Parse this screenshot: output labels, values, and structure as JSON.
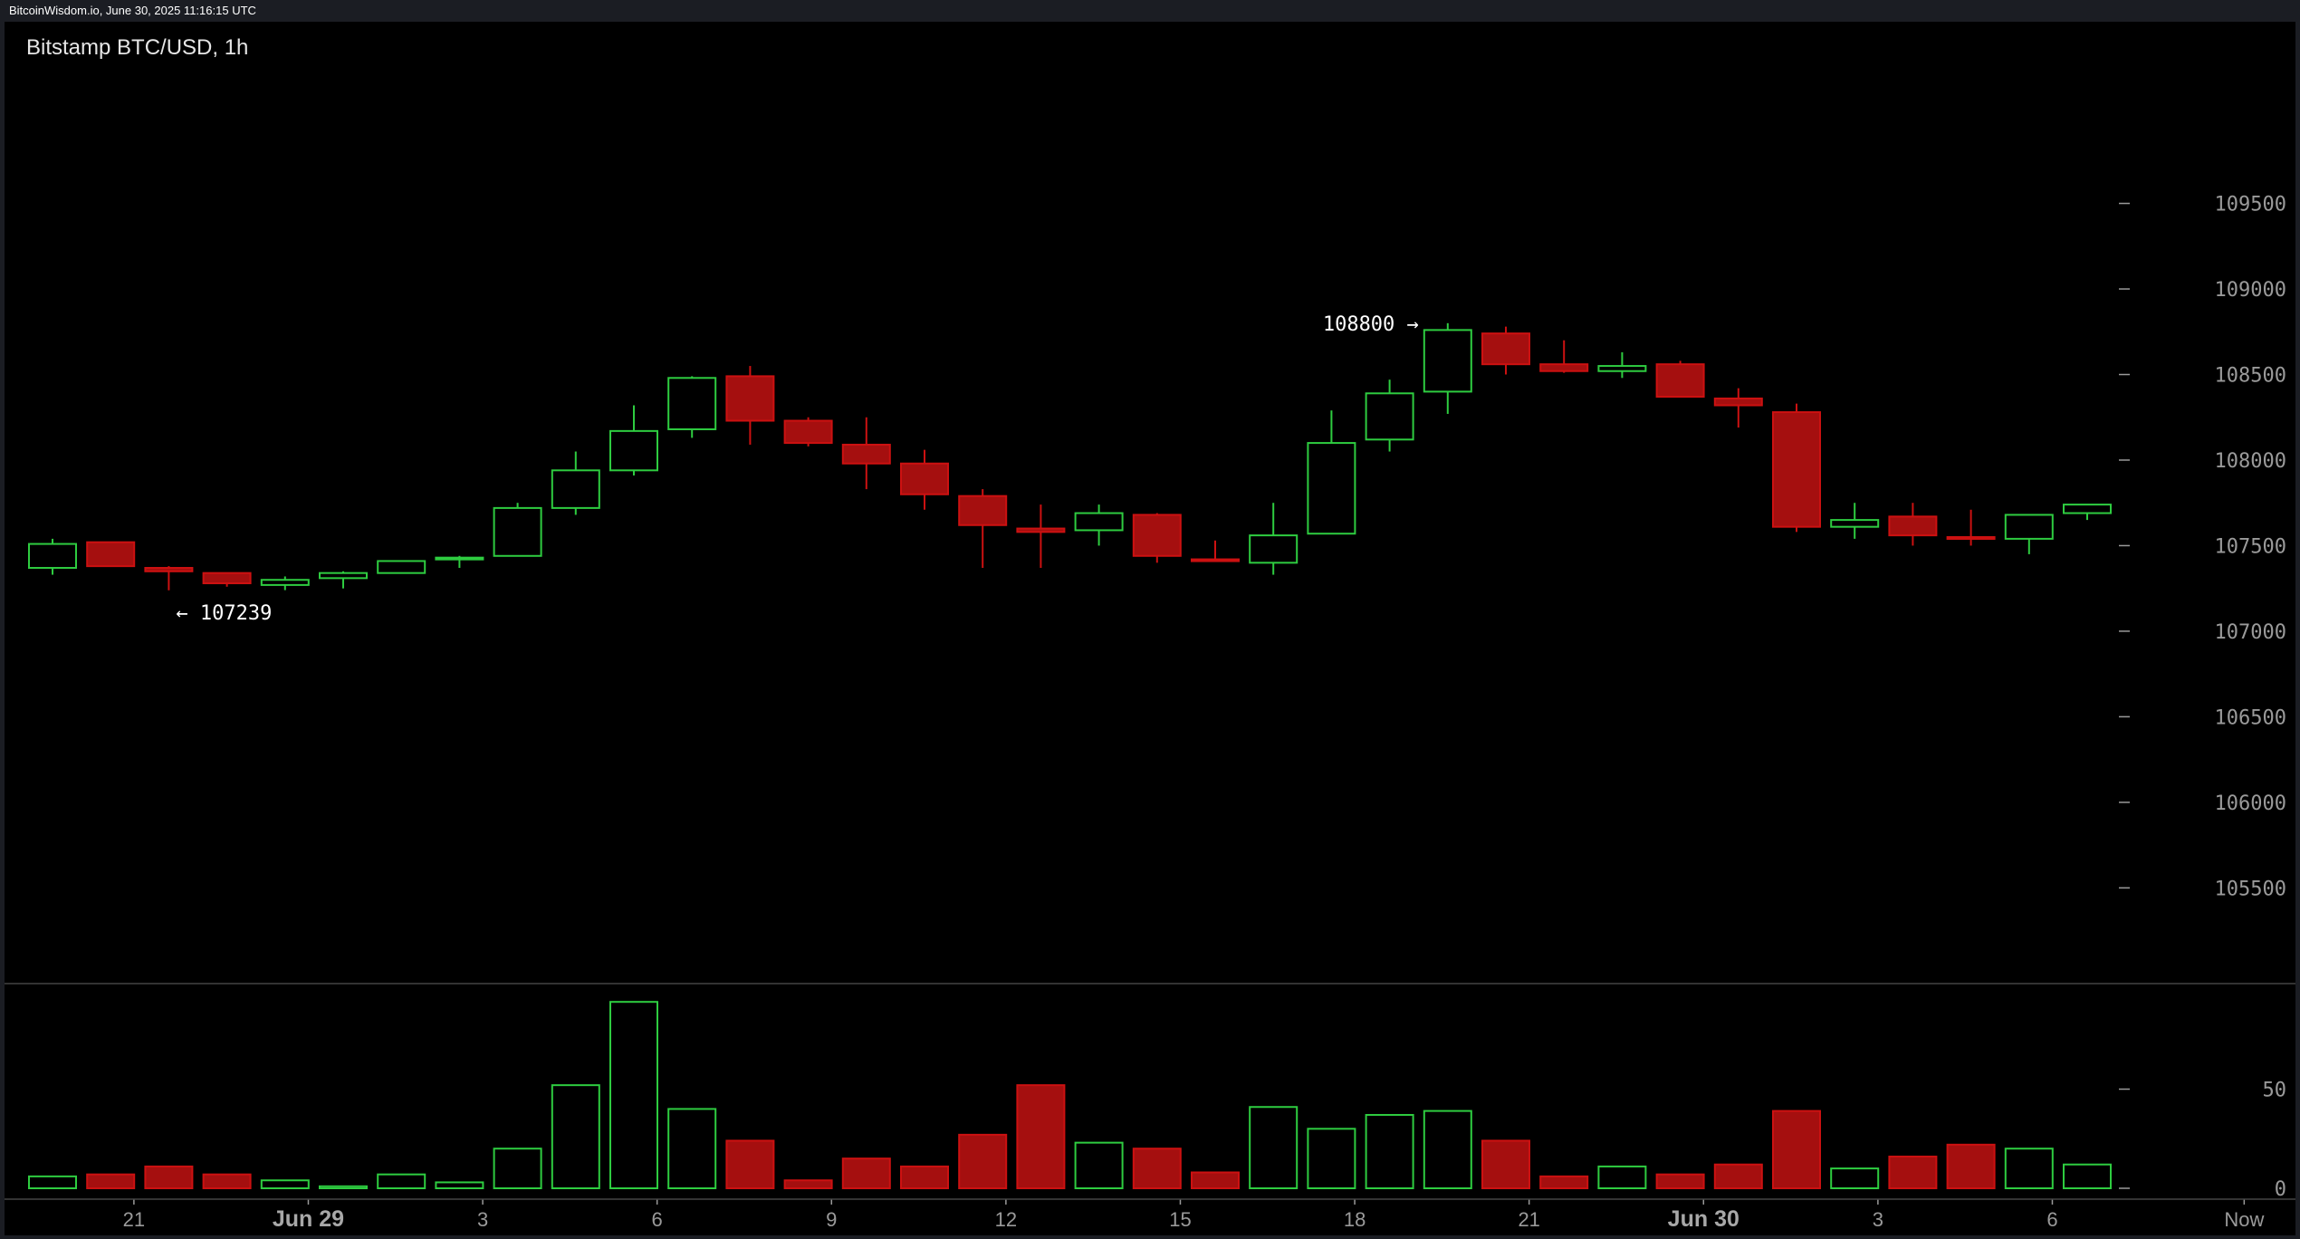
{
  "header": {
    "source_line": "BitcoinWisdom.io, June 30, 2025 11:16:15 UTC"
  },
  "chart_data": {
    "type": "candlestick",
    "title": "Bitstamp BTC/USD, 1h",
    "price_ticks": [
      109500,
      109000,
      108500,
      108000,
      107500,
      107000,
      106500,
      106000,
      105500
    ],
    "volume_ticks": [
      50,
      0
    ],
    "ylim_price": [
      105200,
      109900
    ],
    "ylim_volume": [
      0,
      95
    ],
    "x_ticks": [
      {
        "label": "21",
        "index": 1.4,
        "bold": false
      },
      {
        "label": "Jun 29",
        "index": 4.4,
        "bold": true
      },
      {
        "label": "3",
        "index": 7.4,
        "bold": false
      },
      {
        "label": "6",
        "index": 10.4,
        "bold": false
      },
      {
        "label": "9",
        "index": 13.4,
        "bold": false
      },
      {
        "label": "12",
        "index": 16.4,
        "bold": false
      },
      {
        "label": "15",
        "index": 19.4,
        "bold": false
      },
      {
        "label": "18",
        "index": 22.4,
        "bold": false
      },
      {
        "label": "21",
        "index": 25.4,
        "bold": false
      },
      {
        "label": "Jun 30",
        "index": 28.4,
        "bold": true
      },
      {
        "label": "3",
        "index": 31.4,
        "bold": false
      },
      {
        "label": "6",
        "index": 34.4,
        "bold": false
      },
      {
        "label": "Now",
        "index": 37.7,
        "bold": false
      }
    ],
    "candles": [
      {
        "o": 107370,
        "h": 107540,
        "l": 107330,
        "c": 107510,
        "v": 6
      },
      {
        "o": 107520,
        "h": 107520,
        "l": 107380,
        "c": 107380,
        "v": 7
      },
      {
        "o": 107370,
        "h": 107380,
        "l": 107239,
        "c": 107350,
        "v": 11
      },
      {
        "o": 107340,
        "h": 107340,
        "l": 107260,
        "c": 107280,
        "v": 7
      },
      {
        "o": 107270,
        "h": 107320,
        "l": 107240,
        "c": 107300,
        "v": 4
      },
      {
        "o": 107310,
        "h": 107350,
        "l": 107250,
        "c": 107340,
        "v": 1
      },
      {
        "o": 107340,
        "h": 107410,
        "l": 107340,
        "c": 107410,
        "v": 7
      },
      {
        "o": 107420,
        "h": 107440,
        "l": 107370,
        "c": 107430,
        "v": 3
      },
      {
        "o": 107440,
        "h": 107750,
        "l": 107440,
        "c": 107720,
        "v": 20
      },
      {
        "o": 107720,
        "h": 108050,
        "l": 107680,
        "c": 107940,
        "v": 52
      },
      {
        "o": 107940,
        "h": 108320,
        "l": 107910,
        "c": 108170,
        "v": 94
      },
      {
        "o": 108180,
        "h": 108490,
        "l": 108130,
        "c": 108480,
        "v": 40
      },
      {
        "o": 108490,
        "h": 108550,
        "l": 108090,
        "c": 108230,
        "v": 24
      },
      {
        "o": 108230,
        "h": 108250,
        "l": 108080,
        "c": 108100,
        "v": 4
      },
      {
        "o": 108090,
        "h": 108250,
        "l": 107830,
        "c": 107980,
        "v": 15
      },
      {
        "o": 107980,
        "h": 108060,
        "l": 107710,
        "c": 107800,
        "v": 11
      },
      {
        "o": 107790,
        "h": 107830,
        "l": 107370,
        "c": 107620,
        "v": 27
      },
      {
        "o": 107600,
        "h": 107740,
        "l": 107370,
        "c": 107580,
        "v": 52
      },
      {
        "o": 107590,
        "h": 107740,
        "l": 107500,
        "c": 107690,
        "v": 23
      },
      {
        "o": 107680,
        "h": 107690,
        "l": 107400,
        "c": 107440,
        "v": 20
      },
      {
        "o": 107420,
        "h": 107530,
        "l": 107410,
        "c": 107410,
        "v": 8
      },
      {
        "o": 107400,
        "h": 107750,
        "l": 107330,
        "c": 107560,
        "v": 41
      },
      {
        "o": 107570,
        "h": 108290,
        "l": 107570,
        "c": 108100,
        "v": 30
      },
      {
        "o": 108120,
        "h": 108470,
        "l": 108050,
        "c": 108390,
        "v": 37
      },
      {
        "o": 108400,
        "h": 108800,
        "l": 108270,
        "c": 108760,
        "v": 39
      },
      {
        "o": 108740,
        "h": 108780,
        "l": 108500,
        "c": 108560,
        "v": 24
      },
      {
        "o": 108560,
        "h": 108700,
        "l": 108510,
        "c": 108520,
        "v": 6
      },
      {
        "o": 108520,
        "h": 108630,
        "l": 108480,
        "c": 108550,
        "v": 11
      },
      {
        "o": 108560,
        "h": 108580,
        "l": 108370,
        "c": 108370,
        "v": 7
      },
      {
        "o": 108360,
        "h": 108420,
        "l": 108190,
        "c": 108320,
        "v": 12
      },
      {
        "o": 108280,
        "h": 108330,
        "l": 107580,
        "c": 107610,
        "v": 39
      },
      {
        "o": 107610,
        "h": 107750,
        "l": 107540,
        "c": 107650,
        "v": 10
      },
      {
        "o": 107670,
        "h": 107750,
        "l": 107500,
        "c": 107560,
        "v": 16
      },
      {
        "o": 107550,
        "h": 107710,
        "l": 107500,
        "c": 107540,
        "v": 22
      },
      {
        "o": 107540,
        "h": 107680,
        "l": 107450,
        "c": 107680,
        "v": 20
      },
      {
        "o": 107690,
        "h": 107740,
        "l": 107650,
        "c": 107740,
        "v": 12
      }
    ],
    "annotations": [
      {
        "text": "108800 →",
        "candle": 24,
        "price": 108800,
        "side": "left"
      },
      {
        "text": "← 107239",
        "candle": 2,
        "price": 107239,
        "side": "right"
      }
    ],
    "colors": {
      "up": "#2ecc40",
      "down": "#cc1111",
      "down_fill": "#a50f0f",
      "axis": "#9a9a9a",
      "background": "#000000"
    }
  }
}
